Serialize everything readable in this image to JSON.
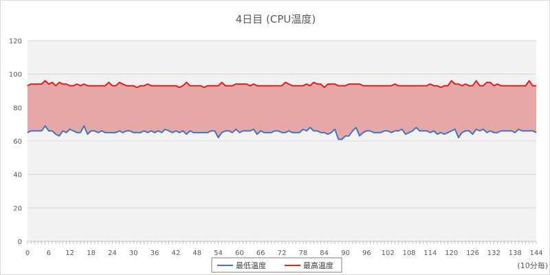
{
  "chart_data": {
    "type": "line",
    "title": "4日目 (CPU温度)",
    "x_unit_note": "(10分毎)",
    "x": [
      0,
      1,
      2,
      3,
      4,
      5,
      6,
      7,
      8,
      9,
      10,
      11,
      12,
      13,
      14,
      15,
      16,
      17,
      18,
      19,
      20,
      21,
      22,
      23,
      24,
      25,
      26,
      27,
      28,
      29,
      30,
      31,
      32,
      33,
      34,
      35,
      36,
      37,
      38,
      39,
      40,
      41,
      42,
      43,
      44,
      45,
      46,
      47,
      48,
      49,
      50,
      51,
      52,
      53,
      54,
      55,
      56,
      57,
      58,
      59,
      60,
      61,
      62,
      63,
      64,
      65,
      66,
      67,
      68,
      69,
      70,
      71,
      72,
      73,
      74,
      75,
      76,
      77,
      78,
      79,
      80,
      81,
      82,
      83,
      84,
      85,
      86,
      87,
      88,
      89,
      90,
      91,
      92,
      93,
      94,
      95,
      96,
      97,
      98,
      99,
      100,
      101,
      102,
      103,
      104,
      105,
      106,
      107,
      108,
      109,
      110,
      111,
      112,
      113,
      114,
      115,
      116,
      117,
      118,
      119,
      120,
      121,
      122,
      123,
      124,
      125,
      126,
      127,
      128,
      129,
      130,
      131,
      132,
      133,
      134,
      135,
      136,
      137,
      138,
      139,
      140,
      141,
      142,
      143,
      144
    ],
    "x_ticks": [
      0,
      6,
      12,
      18,
      24,
      30,
      36,
      42,
      48,
      54,
      60,
      66,
      72,
      78,
      84,
      90,
      96,
      102,
      108,
      114,
      120,
      126,
      132,
      138,
      144
    ],
    "ylim": [
      0,
      120
    ],
    "y_ticks": [
      0,
      20,
      40,
      60,
      80,
      100,
      120
    ],
    "grid": true,
    "fill_between": {
      "color": "#e6a8a6",
      "between": [
        "最低温度",
        "最高温度"
      ]
    },
    "legend_position": "bottom",
    "series": [
      {
        "name": "最低温度",
        "color": "#4472c4",
        "values": [
          65,
          66,
          66,
          66,
          66,
          69,
          66,
          66,
          64,
          63,
          66,
          65,
          67,
          66,
          65,
          65,
          69,
          64,
          66,
          66,
          65,
          66,
          65,
          65,
          65,
          65,
          66,
          65,
          66,
          66,
          65,
          65,
          65,
          66,
          65,
          66,
          65,
          66,
          65,
          67,
          66,
          65,
          66,
          65,
          66,
          64,
          66,
          65,
          65,
          65,
          65,
          65,
          66,
          66,
          62,
          65,
          66,
          66,
          65,
          67,
          65,
          66,
          66,
          66,
          67,
          64,
          66,
          65,
          65,
          65,
          66,
          66,
          65,
          65,
          66,
          65,
          65,
          65,
          67,
          66,
          68,
          66,
          66,
          65,
          65,
          64,
          65,
          67,
          61,
          61,
          63,
          63,
          66,
          68,
          63,
          65,
          66,
          66,
          65,
          65,
          65,
          66,
          66,
          65,
          66,
          66,
          67,
          64,
          65,
          66,
          68,
          66,
          66,
          66,
          65,
          66,
          64,
          65,
          64,
          65,
          66,
          67,
          62,
          65,
          66,
          66,
          64,
          67,
          66,
          67,
          65,
          66,
          65,
          65,
          66,
          66,
          66,
          66,
          65,
          67,
          66,
          66,
          66,
          66,
          65
        ]
      },
      {
        "name": "最高温度",
        "color": "#e31a1c",
        "values": [
          93,
          94,
          94,
          94,
          94,
          96,
          94,
          95,
          93,
          95,
          94,
          94,
          93,
          93,
          94,
          93,
          94,
          93,
          93,
          93,
          93,
          93,
          93,
          95,
          93,
          93,
          95,
          94,
          93,
          93,
          93,
          92,
          93,
          93,
          94,
          93,
          93,
          93,
          93,
          93,
          93,
          93,
          93,
          92,
          93,
          95,
          93,
          93,
          93,
          93,
          92,
          93,
          93,
          93,
          93,
          95,
          93,
          93,
          93,
          94,
          94,
          94,
          94,
          93,
          94,
          93,
          93,
          93,
          93,
          93,
          93,
          93,
          93,
          95,
          94,
          93,
          93,
          93,
          93,
          94,
          93,
          95,
          94,
          94,
          92,
          94,
          94,
          94,
          93,
          93,
          93,
          94,
          94,
          94,
          94,
          93,
          93,
          93,
          93,
          93,
          93,
          93,
          93,
          93,
          94,
          93,
          93,
          93,
          93,
          93,
          93,
          93,
          93,
          93,
          94,
          93,
          93,
          92,
          93,
          93,
          96,
          94,
          94,
          93,
          94,
          93,
          93,
          96,
          93,
          93,
          95,
          95,
          93,
          94,
          93,
          93,
          93,
          93,
          93,
          93,
          93,
          93,
          96,
          93,
          93
        ]
      }
    ]
  }
}
